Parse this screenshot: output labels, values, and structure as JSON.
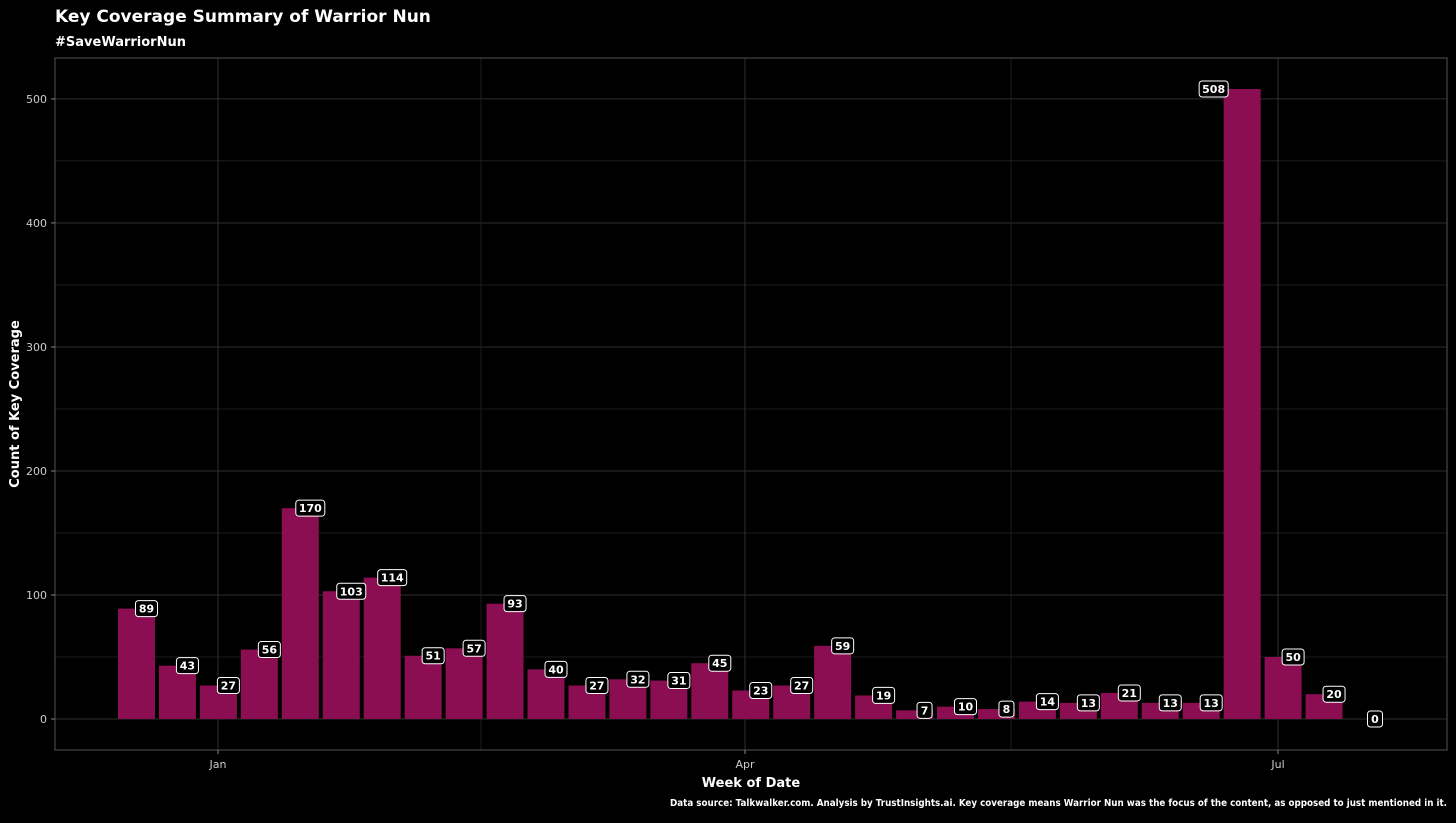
{
  "chart_data": {
    "type": "bar",
    "title": "Key Coverage Summary of Warrior Nun",
    "subtitle": "#SaveWarriorNun",
    "xlabel": "Week of Date",
    "ylabel": "Count of Key Coverage",
    "caption": "Data source: Talkwalker.com. Analysis by TrustInsights.ai. Key coverage means Warrior Nun was the focus of the content, as opposed to just mentioned in it.",
    "x_ticks": [
      "Jan",
      "Apr",
      "Jul"
    ],
    "y_ticks": [
      0,
      100,
      200,
      300,
      400,
      500
    ],
    "ylim": [
      -25,
      533
    ],
    "grid": true,
    "bar_color": "#8b0d52",
    "background": "#000000",
    "values": [
      89,
      43,
      27,
      56,
      170,
      103,
      114,
      51,
      57,
      93,
      40,
      27,
      32,
      31,
      45,
      23,
      27,
      59,
      19,
      7,
      10,
      8,
      14,
      13,
      21,
      13,
      13,
      508,
      50,
      20,
      0
    ]
  }
}
